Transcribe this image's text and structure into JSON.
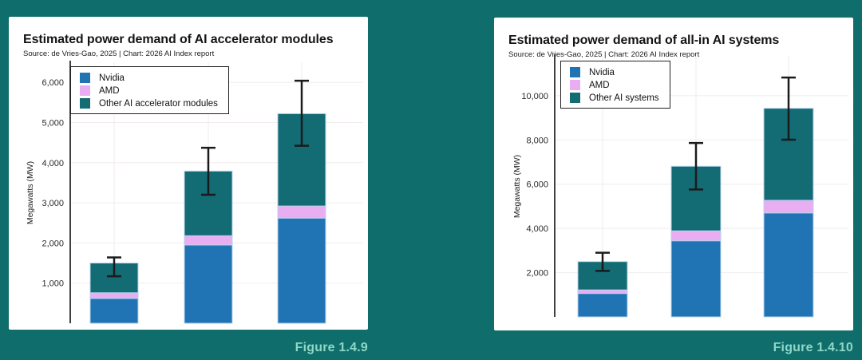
{
  "page": {
    "background_color": "#0f6e6b",
    "panel_background": "#ffffff",
    "caption_color": "#8ed7c7",
    "gridline_color": "#f2ebed",
    "error_bar_color": "#1b1b1b"
  },
  "chart_data": [
    {
      "type": "bar",
      "stacked": true,
      "title": "Estimated power demand of AI accelerator modules",
      "source": "Source: de Vries-Gao, 2025 | Chart: 2026 AI Index report",
      "ylabel": "Megawatts (MW)",
      "caption": "Figure 1.4.9",
      "categories": [
        "",
        "",
        ""
      ],
      "series": [
        {
          "name": "Nvidia",
          "color": "#2074b4",
          "values": [
            620,
            1950,
            2620
          ]
        },
        {
          "name": "AMD",
          "color": "#e9aef2",
          "values": [
            140,
            230,
            300
          ]
        },
        {
          "name": "Other AI accelerator modules",
          "color": "#136b74",
          "values": [
            740,
            1610,
            2300
          ]
        }
      ],
      "totals": [
        1500,
        3790,
        5220
      ],
      "error_low": [
        1170,
        3200,
        4420
      ],
      "error_high": [
        1640,
        4370,
        6040
      ],
      "yticks": [
        1000,
        2000,
        3000,
        4000,
        5000,
        6000
      ],
      "ylim": [
        0,
        6500
      ],
      "grid": true,
      "legend_position": "top-left"
    },
    {
      "type": "bar",
      "stacked": true,
      "title": "Estimated power demand of all-in AI systems",
      "source": "Source: de Vries-Gao, 2025 | Chart: 2026 AI Index report",
      "ylabel": "Megawatts (MW)",
      "caption": "Figure 1.4.10",
      "categories": [
        "",
        "",
        ""
      ],
      "series": [
        {
          "name": "Nvidia",
          "color": "#2074b4",
          "values": [
            1060,
            3440,
            4700
          ]
        },
        {
          "name": "AMD",
          "color": "#e9aef2",
          "values": [
            160,
            450,
            570
          ]
        },
        {
          "name": "Other AI systems",
          "color": "#136b74",
          "values": [
            1280,
            2920,
            4160
          ]
        }
      ],
      "totals": [
        2500,
        6810,
        9430
      ],
      "error_low": [
        2080,
        5760,
        8010
      ],
      "error_high": [
        2900,
        7860,
        10820
      ],
      "yticks": [
        2000,
        4000,
        6000,
        8000,
        10000
      ],
      "ylim": [
        0,
        11800
      ],
      "grid": true,
      "legend_position": "top-left"
    }
  ]
}
